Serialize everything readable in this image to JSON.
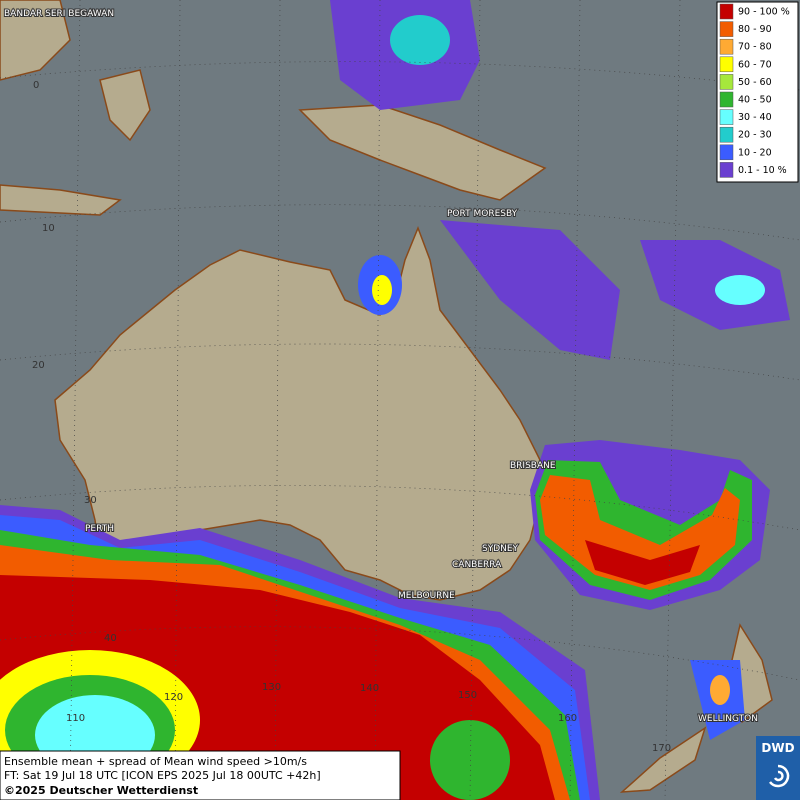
{
  "map": {
    "cities": [
      "BANDAR SERI BEGAWAN",
      "PORT MORESBY",
      "BRISBANE",
      "SYDNEY",
      "CANBERRA",
      "MELBOURNE",
      "PERTH",
      "WELLINGTON"
    ],
    "grid_labels": [
      "0",
      "10",
      "20",
      "30",
      "40",
      "110",
      "120",
      "130",
      "140",
      "150",
      "160",
      "170"
    ],
    "legend": [
      {
        "label": "90 - 100 %",
        "color": "#c40000"
      },
      {
        "label": "80 - 90",
        "color": "#f25c00"
      },
      {
        "label": "70 - 80",
        "color": "#ffaa33"
      },
      {
        "label": "60 - 70",
        "color": "#ffff00"
      },
      {
        "label": "50 - 60",
        "color": "#a6e83c"
      },
      {
        "label": "40 - 50",
        "color": "#2fb52f"
      },
      {
        "label": "30 - 40",
        "color": "#66ffff"
      },
      {
        "label": "20 - 30",
        "color": "#22cccc"
      },
      {
        "label": "10 - 20",
        "color": "#3b5cff"
      },
      {
        "label": "0.1 - 10 %",
        "color": "#6a3fd0"
      }
    ],
    "footer": {
      "line1": "Ensemble mean + spread of Mean wind speed >10m/s",
      "line2": "FT: Sat 19 Jul 18 UTC [ICON EPS 2025 Jul 18 00UTC +42h]",
      "copyright": "©2025 Deutscher Wetterdienst"
    },
    "logo": "DWD"
  }
}
